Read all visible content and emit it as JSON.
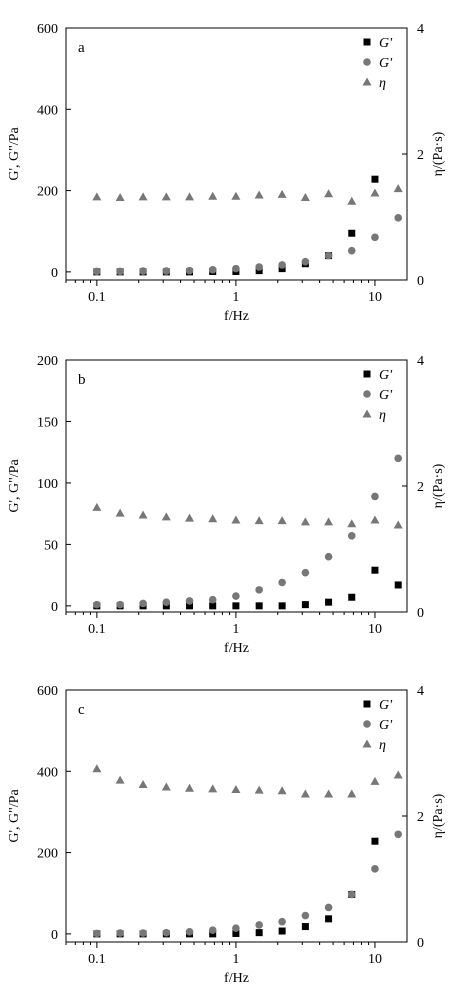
{
  "chart_data": [
    {
      "type": "scatter",
      "panel_label": "a",
      "xlabel": "f/Hz",
      "xscale": "log",
      "xlim": [
        0.06,
        17
      ],
      "x_ticks": [
        0.1,
        1,
        10
      ],
      "x_tick_labels": [
        "0.1",
        "1",
        "10"
      ],
      "ylabel_left": "G', G\"/Pa",
      "ylim_left": [
        -20,
        600
      ],
      "y_ticks_left": [
        0,
        200,
        400,
        600
      ],
      "y_tick_labels_left": [
        "0",
        "200",
        "400",
        "600"
      ],
      "ylabel_right": "η/(Pa·s)",
      "ylim_right": [
        0,
        4
      ],
      "y_ticks_right": [
        0,
        2,
        4
      ],
      "y_tick_labels_right": [
        "0",
        "2",
        "4"
      ],
      "legend": [
        "G'",
        "G'",
        "η"
      ],
      "legend_position": "top-right",
      "x": [
        0.1,
        0.147,
        0.215,
        0.316,
        0.464,
        0.681,
        1.0,
        1.47,
        2.15,
        3.16,
        4.64,
        6.81,
        10.0,
        14.7
      ],
      "series": [
        {
          "name": "G'",
          "marker": "square",
          "color": "#000000",
          "axis": "left",
          "values": [
            0,
            0,
            0,
            0,
            0,
            1,
            1,
            3,
            8,
            20,
            40,
            95,
            228,
            null
          ]
        },
        {
          "name": "G'",
          "marker": "circle",
          "color": "#777777",
          "axis": "left",
          "values": [
            1,
            1,
            2,
            2,
            3,
            5,
            8,
            12,
            17,
            25,
            40,
            52,
            85,
            133
          ]
        },
        {
          "name": "η",
          "marker": "triangle",
          "color": "#777777",
          "axis": "right",
          "values": [
            1.32,
            1.31,
            1.32,
            1.32,
            1.32,
            1.33,
            1.33,
            1.35,
            1.36,
            1.31,
            1.37,
            1.25,
            1.38,
            1.45
          ]
        }
      ]
    },
    {
      "type": "scatter",
      "panel_label": "b",
      "xlabel": "f/Hz",
      "xscale": "log",
      "xlim": [
        0.06,
        17
      ],
      "x_ticks": [
        0.1,
        1,
        10
      ],
      "x_tick_labels": [
        "0.1",
        "1",
        "10"
      ],
      "ylabel_left": "G', G\"/Pa",
      "ylim_left": [
        -5,
        200
      ],
      "y_ticks_left": [
        0,
        50,
        100,
        150,
        200
      ],
      "y_tick_labels_left": [
        "0",
        "50",
        "100",
        "150",
        "200"
      ],
      "ylabel_right": "η/(Pa·s)",
      "ylim_right": [
        0,
        4
      ],
      "y_ticks_right": [
        0,
        2,
        4
      ],
      "y_tick_labels_right": [
        "0",
        "2",
        "4"
      ],
      "legend": [
        "G'",
        "G'",
        "η"
      ],
      "legend_position": "top-right",
      "x": [
        0.1,
        0.147,
        0.215,
        0.316,
        0.464,
        0.681,
        1.0,
        1.47,
        2.15,
        3.16,
        4.64,
        6.81,
        10.0,
        14.7
      ],
      "series": [
        {
          "name": "G'",
          "marker": "square",
          "color": "#000000",
          "axis": "left",
          "values": [
            0,
            0,
            0,
            0,
            0,
            0,
            0,
            0,
            0,
            1,
            3,
            7,
            29,
            17
          ]
        },
        {
          "name": "G'",
          "marker": "circle",
          "color": "#777777",
          "axis": "left",
          "values": [
            1,
            1,
            2,
            3,
            4,
            5,
            8,
            13,
            19,
            27,
            40,
            57,
            89,
            120
          ]
        },
        {
          "name": "η",
          "marker": "triangle",
          "color": "#777777",
          "axis": "right",
          "values": [
            1.66,
            1.57,
            1.54,
            1.51,
            1.49,
            1.48,
            1.46,
            1.45,
            1.45,
            1.43,
            1.43,
            1.4,
            1.46,
            1.38
          ]
        }
      ]
    },
    {
      "type": "scatter",
      "panel_label": "c",
      "xlabel": "f/Hz",
      "xscale": "log",
      "xlim": [
        0.06,
        17
      ],
      "x_ticks": [
        0.1,
        1,
        10
      ],
      "x_tick_labels": [
        "0.1",
        "1",
        "10"
      ],
      "ylabel_left": "G', G\"/Pa",
      "ylim_left": [
        -20,
        600
      ],
      "y_ticks_left": [
        0,
        200,
        400,
        600
      ],
      "y_tick_labels_left": [
        "0",
        "200",
        "400",
        "600"
      ],
      "ylabel_right": "η/(Pa·s)",
      "ylim_right": [
        0,
        4
      ],
      "y_ticks_right": [
        0,
        2,
        4
      ],
      "y_tick_labels_right": [
        "0",
        "2",
        "4"
      ],
      "legend": [
        "G'",
        "G'",
        "η"
      ],
      "legend_position": "top-right",
      "x": [
        0.1,
        0.147,
        0.215,
        0.316,
        0.464,
        0.681,
        1.0,
        1.47,
        2.15,
        3.16,
        4.64,
        6.81,
        10.0,
        14.7
      ],
      "series": [
        {
          "name": "G'",
          "marker": "square",
          "color": "#000000",
          "axis": "left",
          "values": [
            0,
            0,
            0,
            0,
            0,
            0,
            1,
            3,
            7,
            18,
            37,
            97,
            228,
            null
          ]
        },
        {
          "name": "G'",
          "marker": "circle",
          "color": "#777777",
          "axis": "left",
          "values": [
            1,
            2,
            2,
            3,
            5,
            9,
            14,
            22,
            30,
            45,
            65,
            97,
            160,
            245
          ]
        },
        {
          "name": "η",
          "marker": "triangle",
          "color": "#777777",
          "axis": "right",
          "values": [
            2.75,
            2.57,
            2.5,
            2.46,
            2.44,
            2.43,
            2.42,
            2.41,
            2.4,
            2.35,
            2.35,
            2.35,
            2.55,
            2.65
          ]
        }
      ]
    }
  ]
}
